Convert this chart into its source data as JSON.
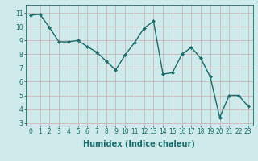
{
  "x": [
    0,
    1,
    2,
    3,
    4,
    5,
    6,
    7,
    8,
    9,
    10,
    11,
    12,
    13,
    14,
    15,
    16,
    17,
    18,
    19,
    20,
    21,
    22,
    23
  ],
  "y": [
    10.85,
    10.9,
    9.95,
    8.9,
    8.9,
    9.0,
    8.55,
    8.15,
    7.5,
    6.85,
    7.95,
    8.85,
    9.9,
    10.4,
    6.55,
    6.65,
    8.0,
    8.5,
    7.7,
    6.35,
    3.4,
    5.0,
    5.0,
    4.2
  ],
  "xlim": [
    -0.5,
    23.5
  ],
  "ylim": [
    2.8,
    11.6
  ],
  "yticks": [
    3,
    4,
    5,
    6,
    7,
    8,
    9,
    10,
    11
  ],
  "xticks": [
    0,
    1,
    2,
    3,
    4,
    5,
    6,
    7,
    8,
    9,
    10,
    11,
    12,
    13,
    14,
    15,
    16,
    17,
    18,
    19,
    20,
    21,
    22,
    23
  ],
  "xlabel": "Humidex (Indice chaleur)",
  "line_color": "#1a6b6b",
  "marker": "D",
  "marker_size": 2.0,
  "bg_color": "#ceeaea",
  "grid_color": "#c8b8b8",
  "tick_label_fontsize": 5.5,
  "xlabel_fontsize": 7.0,
  "title": ""
}
